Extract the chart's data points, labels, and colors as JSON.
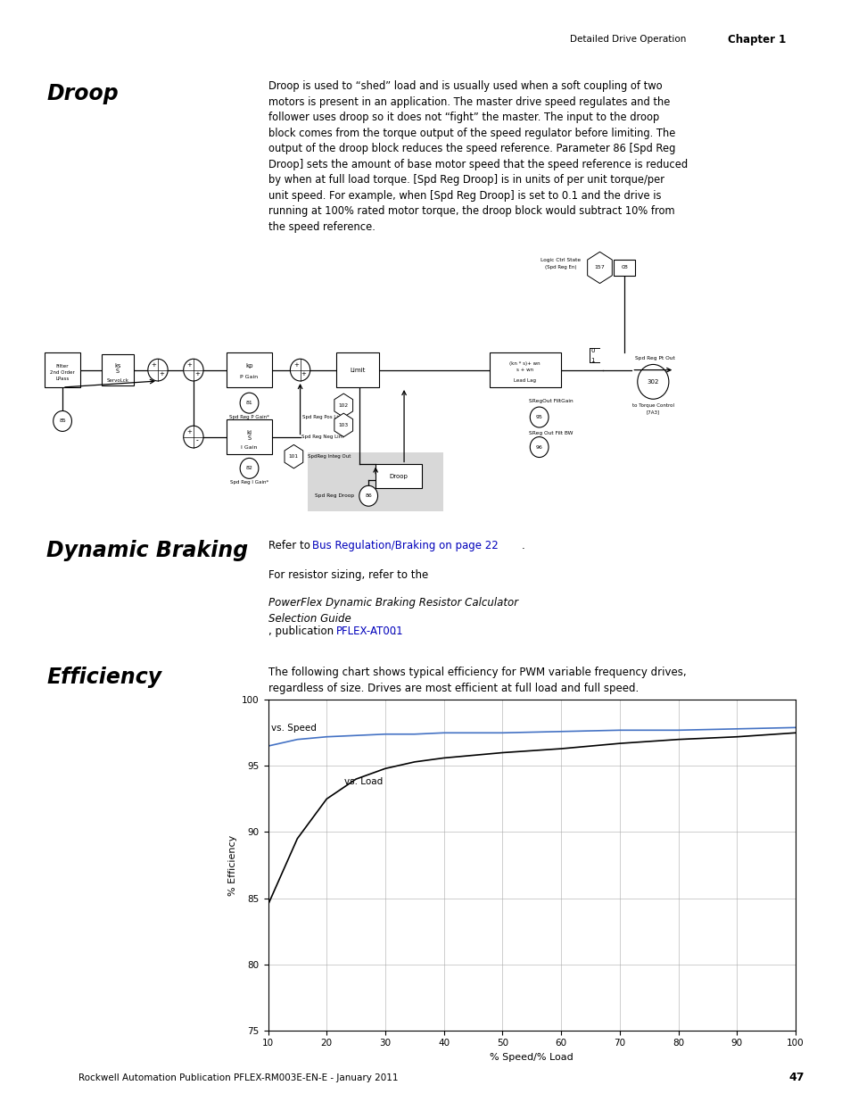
{
  "page_title_right": "Detailed Drive Operation",
  "chapter": "Chapter 1",
  "page_number": "47",
  "footer": "Rockwell Automation Publication PFLEX-RM003E-EN-E - January 2011",
  "section1_title": "Droop",
  "section1_text": "Droop is used to “shed” load and is usually used when a soft coupling of two motors is present in an application. The master drive speed regulates and the follower uses droop so it does not “fight” the master. The input to the droop block comes from the torque output of the speed regulator before limiting. The output of the droop block reduces the speed reference. Parameter 86 [Spd Reg Droop] sets the amount of base motor speed that the speed reference is reduced by when at full load torque. [Spd Reg Droop] is in units of per unit torque/per unit speed. For example, when [Spd Reg Droop] is set to 0.1 and the drive is running at 100% rated motor torque, the droop block would subtract 10% from the speed reference.",
  "section2_title": "Dynamic Braking",
  "section3_title": "Efficiency",
  "section3_text": "The following chart shows typical efficiency for PWM variable frequency drives,\nregardless of size. Drives are most efficient at full load and full speed.",
  "chart_xlabel": "% Speed/% Load",
  "chart_ylabel": "% Efficiency",
  "chart_xlim": [
    10,
    100
  ],
  "chart_ylim": [
    75,
    100
  ],
  "chart_xticks": [
    10,
    20,
    30,
    40,
    50,
    60,
    70,
    80,
    90,
    100
  ],
  "chart_yticks": [
    75,
    80,
    85,
    90,
    95,
    100
  ],
  "vs_speed_x": [
    10,
    15,
    20,
    25,
    30,
    35,
    40,
    50,
    60,
    70,
    80,
    90,
    100
  ],
  "vs_speed_y": [
    96.5,
    97.0,
    97.2,
    97.3,
    97.4,
    97.4,
    97.5,
    97.5,
    97.6,
    97.7,
    97.7,
    97.8,
    97.9
  ],
  "vs_load_x": [
    10,
    15,
    20,
    25,
    30,
    35,
    40,
    50,
    60,
    70,
    80,
    90,
    100
  ],
  "vs_load_y": [
    84.5,
    89.5,
    92.5,
    94.0,
    94.8,
    95.3,
    95.6,
    96.0,
    96.3,
    96.7,
    97.0,
    97.2,
    97.5
  ],
  "bg_color": "#ffffff",
  "speed_line_color": "#4472c4",
  "load_line_color": "#000000"
}
